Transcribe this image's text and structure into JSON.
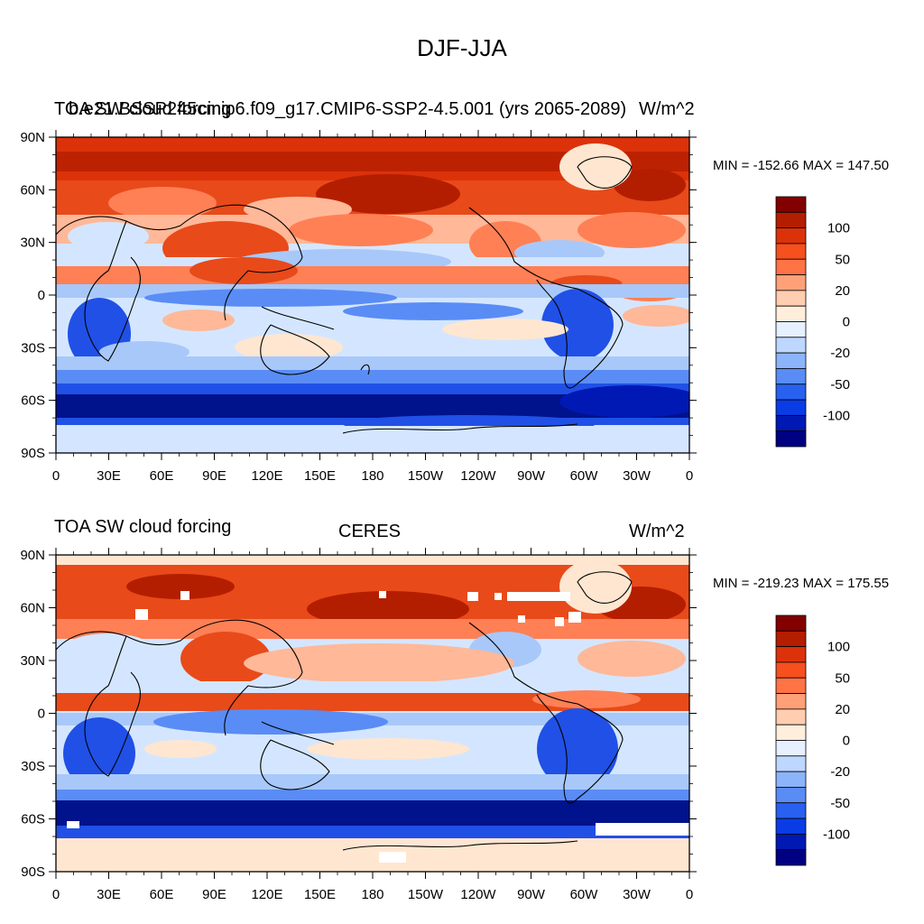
{
  "title": "DJF-JJA",
  "panels": [
    {
      "left_string_a": "TOA SW cloud forcing",
      "left_string_b": "b.e21.BSSP245cmip6.f09_g17.CMIP6-SSP2-4.5.001 (yrs 2065-2089)",
      "center_string": "",
      "units": "W/m^2",
      "minmax": "MIN = -152.66 MAX = 147.50"
    },
    {
      "left_string_a": "TOA SW cloud forcing",
      "left_string_b": "",
      "center_string": "CERES",
      "units": "W/m^2",
      "minmax": "MIN = -219.23 MAX = 175.55"
    }
  ],
  "lat_labels": [
    "90N",
    "60N",
    "30N",
    "0",
    "30S",
    "60S",
    "90S"
  ],
  "lon_labels": [
    "0",
    "30E",
    "60E",
    "90E",
    "120E",
    "150E",
    "180",
    "150W",
    "120W",
    "90W",
    "60W",
    "30W",
    "0"
  ],
  "colorbar": {
    "labels": [
      "100",
      "50",
      "20",
      "0",
      "-20",
      "-50",
      "-100"
    ],
    "colors": [
      "#000082",
      "#0019b4",
      "#0a3ce6",
      "#2860f0",
      "#5a8cf5",
      "#8cb4fa",
      "#bed7ff",
      "#e6f0ff",
      "#ffeedc",
      "#ffcdaf",
      "#ffa078",
      "#ff7345",
      "#f5501e",
      "#dc320a",
      "#b41e00",
      "#820000"
    ]
  },
  "map_colors": {
    "deep_red": "#b41e00",
    "red": "#e84a1a",
    "orange": "#ff8055",
    "salmon": "#ffb898",
    "peach": "#ffe6d0",
    "light_blue": "#d4e6ff",
    "sky": "#a8c8fa",
    "mid_blue": "#5a8cf5",
    "blue": "#2050e6",
    "dark_blue": "#00128c",
    "coast": "#000000"
  }
}
